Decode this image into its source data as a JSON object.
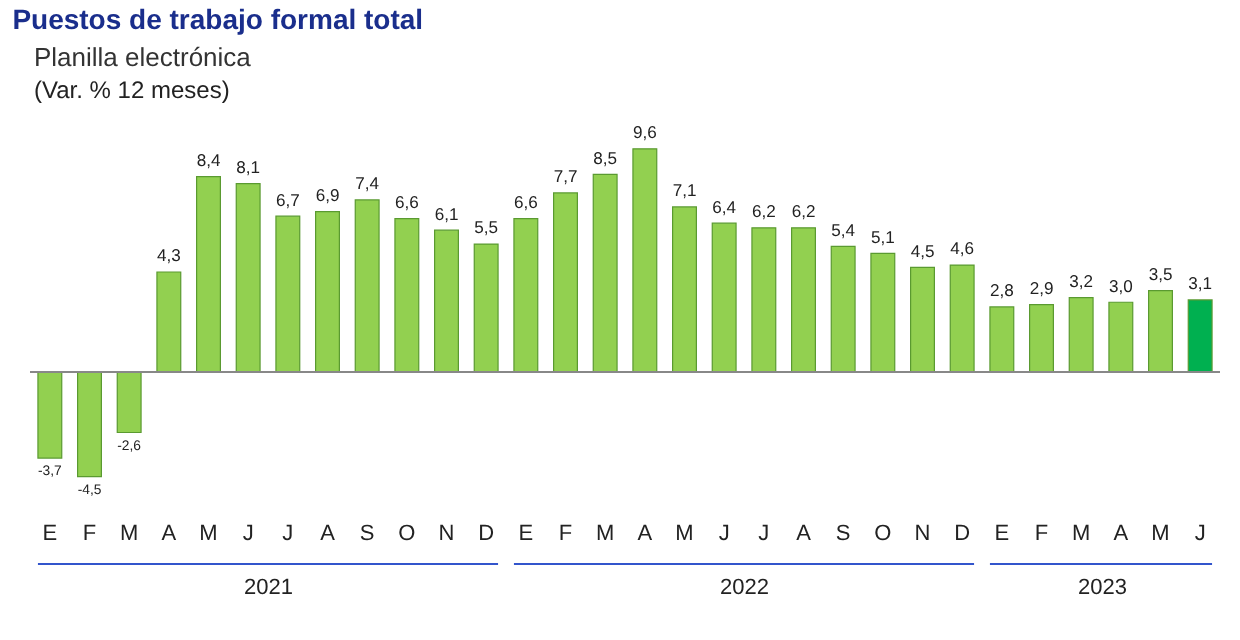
{
  "chart_data": {
    "type": "bar",
    "title": "Puestos de trabajo formal total",
    "subtitle": "Planilla electrónica",
    "ylabel": "(Var. % 12 meses)",
    "categories": [
      "E",
      "F",
      "M",
      "A",
      "M",
      "J",
      "J",
      "A",
      "S",
      "O",
      "N",
      "D",
      "E",
      "F",
      "M",
      "A",
      "M",
      "J",
      "J",
      "A",
      "S",
      "O",
      "N",
      "D",
      "E",
      "F",
      "M",
      "A",
      "M",
      "J"
    ],
    "values": [
      -3.7,
      -4.5,
      -2.6,
      4.3,
      8.4,
      8.1,
      6.7,
      6.9,
      7.4,
      6.6,
      6.1,
      5.5,
      6.6,
      7.7,
      8.5,
      9.6,
      7.1,
      6.4,
      6.2,
      6.2,
      5.4,
      5.1,
      4.5,
      4.6,
      2.8,
      2.9,
      3.2,
      3.0,
      3.5,
      3.1
    ],
    "value_labels": [
      "-3,7",
      "-4,5",
      "-2,6",
      "4,3",
      "8,4",
      "8,1",
      "6,7",
      "6,9",
      "7,4",
      "6,6",
      "6,1",
      "5,5",
      "6,6",
      "7,7",
      "8,5",
      "9,6",
      "7,1",
      "6,4",
      "6,2",
      "6,2",
      "5,4",
      "5,1",
      "4,5",
      "4,6",
      "2,8",
      "2,9",
      "3,2",
      "3,0",
      "3,5",
      "3,1"
    ],
    "colors": [
      "#92d050",
      "#92d050",
      "#92d050",
      "#92d050",
      "#92d050",
      "#92d050",
      "#92d050",
      "#92d050",
      "#92d050",
      "#92d050",
      "#92d050",
      "#92d050",
      "#92d050",
      "#92d050",
      "#92d050",
      "#92d050",
      "#92d050",
      "#92d050",
      "#92d050",
      "#92d050",
      "#92d050",
      "#92d050",
      "#92d050",
      "#92d050",
      "#92d050",
      "#92d050",
      "#92d050",
      "#92d050",
      "#92d050",
      "#00b050"
    ],
    "annotations": [
      "2021",
      "2022",
      "2023"
    ],
    "legend": false
  }
}
